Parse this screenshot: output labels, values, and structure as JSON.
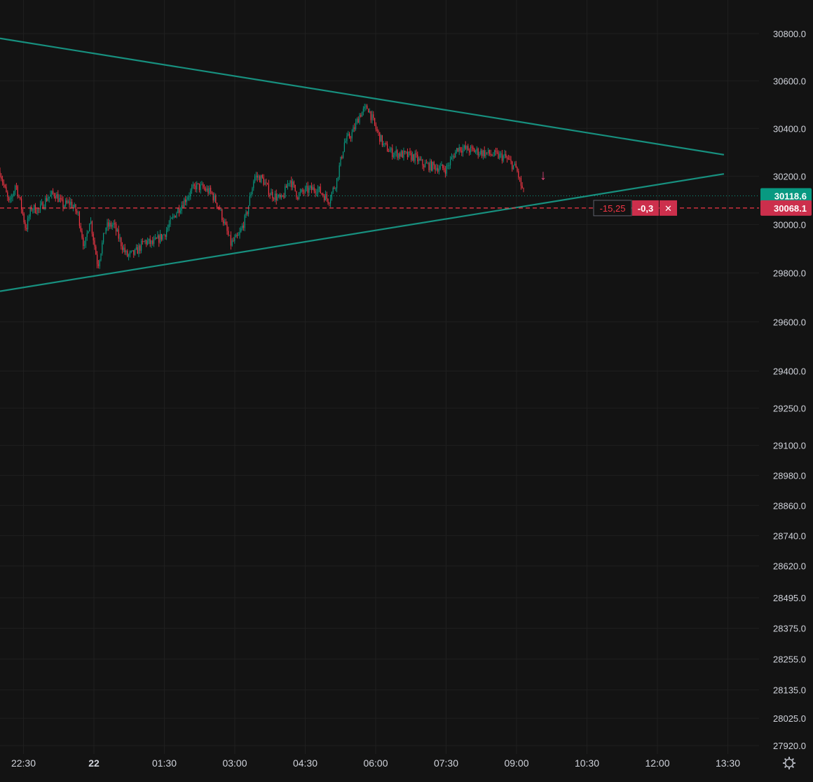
{
  "chart_data": {
    "type": "candlestick",
    "title": "",
    "xlabel": "",
    "ylabel": "",
    "y_axis": {
      "scale": "log",
      "ticks": [
        "30800.0",
        "30600.0",
        "30400.0",
        "30200.0",
        "30000.0",
        "29800.0",
        "29600.0",
        "29400.0",
        "29250.0",
        "29100.0",
        "28980.0",
        "28860.0",
        "28740.0",
        "28620.0",
        "28495.0",
        "28375.0",
        "28255.0",
        "28135.0",
        "28025.0",
        "27920.0"
      ]
    },
    "x_axis": {
      "ticks": [
        "22:30",
        "22",
        "01:30",
        "03:00",
        "04:30",
        "06:00",
        "07:30",
        "09:00",
        "10:30",
        "12:00",
        "13:30"
      ],
      "bold_tick": "22"
    },
    "grid": true,
    "series_anchors": [
      {
        "t": "21 22:00",
        "p": 30220
      },
      {
        "t": "21 22:05",
        "p": 30160
      },
      {
        "t": "21 22:12",
        "p": 30080
      },
      {
        "t": "21 22:20",
        "p": 30170
      },
      {
        "t": "21 22:28",
        "p": 30060
      },
      {
        "t": "21 22:33",
        "p": 29980
      },
      {
        "t": "21 22:40",
        "p": 30070
      },
      {
        "t": "21 22:50",
        "p": 30060
      },
      {
        "t": "21 23:00",
        "p": 30110
      },
      {
        "t": "21 23:10",
        "p": 30130
      },
      {
        "t": "21 23:20",
        "p": 30080
      },
      {
        "t": "21 23:30",
        "p": 30090
      },
      {
        "t": "21 23:40",
        "p": 30040
      },
      {
        "t": "21 23:48",
        "p": 29900
      },
      {
        "t": "21 23:55",
        "p": 30030
      },
      {
        "t": "22 00:05",
        "p": 29830
      },
      {
        "t": "22 00:15",
        "p": 29990
      },
      {
        "t": "22 00:25",
        "p": 30000
      },
      {
        "t": "22 00:35",
        "p": 29920
      },
      {
        "t": "22 00:42",
        "p": 29870
      },
      {
        "t": "22 00:52",
        "p": 29880
      },
      {
        "t": "22 01:05",
        "p": 29930
      },
      {
        "t": "22 01:15",
        "p": 29920
      },
      {
        "t": "22 01:30",
        "p": 29960
      },
      {
        "t": "22 01:45",
        "p": 30050
      },
      {
        "t": "22 02:00",
        "p": 30120
      },
      {
        "t": "22 02:10",
        "p": 30160
      },
      {
        "t": "22 02:20",
        "p": 30150
      },
      {
        "t": "22 02:30",
        "p": 30130
      },
      {
        "t": "22 02:40",
        "p": 30070
      },
      {
        "t": "22 02:55",
        "p": 29920
      },
      {
        "t": "22 03:05",
        "p": 29950
      },
      {
        "t": "22 03:15",
        "p": 30040
      },
      {
        "t": "22 03:25",
        "p": 30200
      },
      {
        "t": "22 03:35",
        "p": 30190
      },
      {
        "t": "22 03:45",
        "p": 30130
      },
      {
        "t": "22 04:00",
        "p": 30100
      },
      {
        "t": "22 04:10",
        "p": 30190
      },
      {
        "t": "22 04:20",
        "p": 30120
      },
      {
        "t": "22 04:30",
        "p": 30140
      },
      {
        "t": "22 04:45",
        "p": 30150
      },
      {
        "t": "22 05:00",
        "p": 30100
      },
      {
        "t": "22 05:10",
        "p": 30180
      },
      {
        "t": "22 05:20",
        "p": 30340
      },
      {
        "t": "22 05:30",
        "p": 30380
      },
      {
        "t": "22 05:40",
        "p": 30460
      },
      {
        "t": "22 05:50",
        "p": 30490
      },
      {
        "t": "22 06:00",
        "p": 30400
      },
      {
        "t": "22 06:10",
        "p": 30330
      },
      {
        "t": "22 06:20",
        "p": 30300
      },
      {
        "t": "22 06:35",
        "p": 30290
      },
      {
        "t": "22 06:50",
        "p": 30280
      },
      {
        "t": "22 07:00",
        "p": 30250
      },
      {
        "t": "22 07:15",
        "p": 30240
      },
      {
        "t": "22 07:30",
        "p": 30230
      },
      {
        "t": "22 07:45",
        "p": 30320
      },
      {
        "t": "22 08:00",
        "p": 30310
      },
      {
        "t": "22 08:15",
        "p": 30300
      },
      {
        "t": "22 08:30",
        "p": 30290
      },
      {
        "t": "22 08:45",
        "p": 30280
      },
      {
        "t": "22 09:00",
        "p": 30230
      },
      {
        "t": "22 09:05",
        "p": 30170
      },
      {
        "t": "22 09:10",
        "p": 30118.6
      }
    ],
    "trendlines": [
      {
        "name": "upper-trendline",
        "from": {
          "t": "21 22:00",
          "p": 30780
        },
        "to": {
          "t": "22 13:25",
          "p": 30290
        },
        "color": "#17907f"
      },
      {
        "name": "lower-trendline",
        "from": {
          "t": "21 22:00",
          "p": 29725
        },
        "to": {
          "t": "22 13:25",
          "p": 30210
        },
        "color": "#17907f"
      }
    ],
    "current_price": {
      "value": 30118.6,
      "label": "30118.6",
      "color": "#089981"
    },
    "order_line": {
      "value": 30068.1,
      "label": "30068.1",
      "color": "#f23645"
    },
    "order_panel": {
      "pnl": "-15,25",
      "qty": "-0,3",
      "close_symbol": "✕"
    },
    "signal_arrow": {
      "symbol": "↓",
      "color": "#e0457b"
    },
    "colors": {
      "background": "#131313",
      "grid": "#1f1f1f",
      "up": "#089981",
      "down": "#f23645",
      "text": "#d1d4dc"
    }
  }
}
